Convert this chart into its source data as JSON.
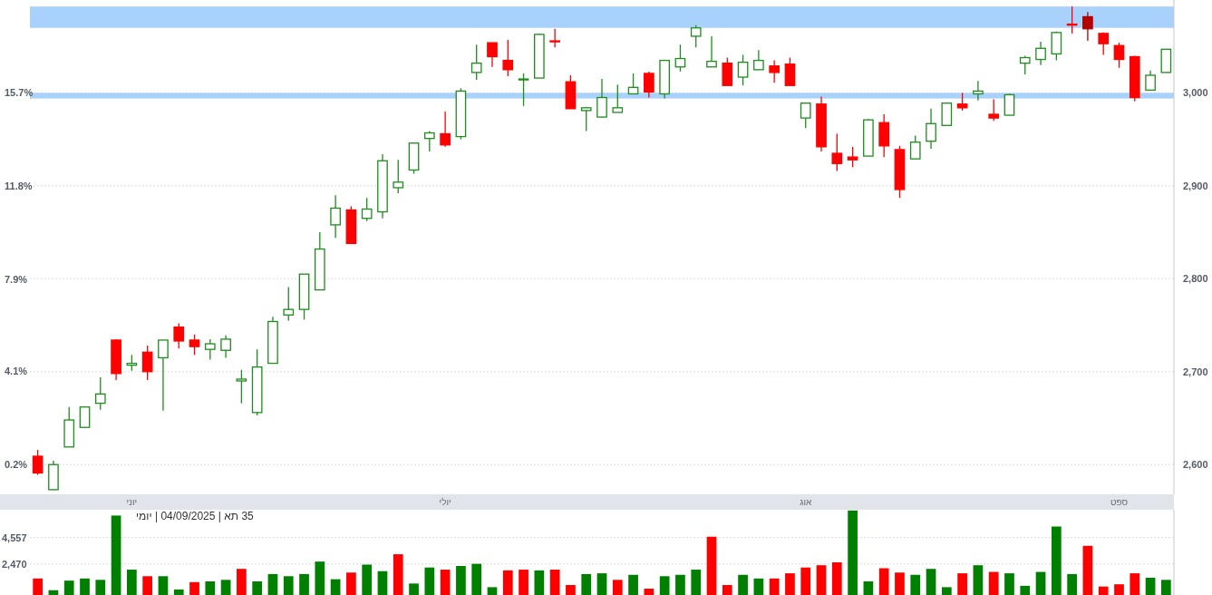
{
  "chart_data": [
    {
      "type": "candlestick",
      "title": "יומי | 04/09/2025 | תא 35",
      "categories": [
        null,
        null,
        null,
        null,
        null,
        null,
        "יוני",
        null,
        null,
        null,
        null,
        null,
        null,
        null,
        null,
        null,
        null,
        null,
        null,
        null,
        null,
        null,
        null,
        null,
        null,
        null,
        "יולי",
        null,
        null,
        null,
        null,
        null,
        null,
        null,
        null,
        null,
        null,
        null,
        null,
        null,
        null,
        null,
        null,
        null,
        null,
        null,
        null,
        null,
        null,
        "אוג",
        null,
        null,
        null,
        null,
        null,
        null,
        null,
        null,
        null,
        null,
        null,
        null,
        null,
        null,
        null,
        null,
        null,
        null,
        null,
        "ספט",
        null,
        null,
        null
      ],
      "ohlc": [
        [
          2609,
          2616,
          2589,
          2591
        ],
        [
          2573,
          2604,
          2573,
          2600
        ],
        [
          2619,
          2662,
          2619,
          2648
        ],
        [
          2640,
          2662,
          2640,
          2662
        ],
        [
          2666,
          2694,
          2659,
          2676
        ],
        [
          2734,
          2735,
          2691,
          2698
        ],
        [
          2707,
          2718,
          2701,
          2709
        ],
        [
          2721,
          2728,
          2691,
          2700
        ],
        [
          2715,
          2734,
          2658,
          2734
        ],
        [
          2748,
          2752,
          2725,
          2733
        ],
        [
          2734,
          2740,
          2718,
          2727
        ],
        [
          2724,
          2735,
          2713,
          2730
        ],
        [
          2723,
          2739,
          2715,
          2735
        ],
        [
          2690,
          2702,
          2666,
          2692
        ],
        [
          2656,
          2724,
          2653,
          2705
        ],
        [
          2709,
          2759,
          2709,
          2754
        ],
        [
          2761,
          2791,
          2755,
          2767
        ],
        [
          2767,
          2805,
          2756,
          2805
        ],
        [
          2788,
          2850,
          2788,
          2832
        ],
        [
          2858,
          2890,
          2844,
          2876
        ],
        [
          2874,
          2878,
          2838,
          2838
        ],
        [
          2865,
          2887,
          2862,
          2875
        ],
        [
          2872,
          2934,
          2865,
          2927
        ],
        [
          2898,
          2928,
          2892,
          2904
        ],
        [
          2917,
          2946,
          2913,
          2946
        ],
        [
          2951,
          2959,
          2937,
          2957
        ],
        [
          2956,
          2980,
          2942,
          2944
        ],
        [
          2953,
          3005,
          2950,
          3002
        ],
        [
          3022,
          3052,
          3014,
          3032
        ],
        [
          3054,
          3054,
          3028,
          3039
        ],
        [
          3035,
          3057,
          3018,
          3025
        ],
        [
          3014,
          3021,
          2986,
          3015
        ],
        [
          3016,
          3064,
          3016,
          3063
        ],
        [
          3056,
          3069,
          3049,
          3055
        ],
        [
          3012,
          3019,
          2983,
          2983
        ],
        [
          2981,
          2985,
          2959,
          2984
        ],
        [
          2974,
          3015,
          2974,
          2995
        ],
        [
          2979,
          3009,
          2979,
          2984
        ],
        [
          2999,
          3021,
          2999,
          3006
        ],
        [
          3021,
          3023,
          2995,
          3001
        ],
        [
          2999,
          3035,
          2994,
          3035
        ],
        [
          3028,
          3052,
          3023,
          3037
        ],
        [
          3061,
          3073,
          3049,
          3070
        ],
        [
          3028,
          3061,
          3028,
          3034
        ],
        [
          3032,
          3038,
          3008,
          3008
        ],
        [
          3017,
          3041,
          3008,
          3033
        ],
        [
          3025,
          3046,
          3025,
          3035
        ],
        [
          3029,
          3035,
          3011,
          3022
        ],
        [
          3031,
          3038,
          3008,
          3008
        ],
        [
          2973,
          2989,
          2962,
          2989
        ],
        [
          2988,
          2996,
          2937,
          2942
        ],
        [
          2935,
          2956,
          2916,
          2924
        ],
        [
          2931,
          2942,
          2920,
          2928
        ],
        [
          2932,
          2972,
          2932,
          2971
        ],
        [
          2968,
          2977,
          2931,
          2943
        ],
        [
          2939,
          2943,
          2887,
          2896
        ],
        [
          2929,
          2954,
          2929,
          2947
        ],
        [
          2948,
          2983,
          2940,
          2967
        ],
        [
          2965,
          2989,
          2965,
          2989
        ],
        [
          2988,
          3000,
          2981,
          2984
        ],
        [
          2999,
          3013,
          2992,
          3002
        ],
        [
          2977,
          2993,
          2970,
          2973
        ],
        [
          2976,
          2999,
          2976,
          2998
        ],
        [
          3032,
          3040,
          3020,
          3038
        ],
        [
          3036,
          3055,
          3030,
          3048
        ],
        [
          3042,
          3066,
          3035,
          3065
        ],
        [
          3074,
          3093,
          3064,
          3073
        ],
        [
          3082,
          3087,
          3056,
          3069
        ],
        [
          3064,
          3065,
          3041,
          3053
        ],
        [
          3051,
          3054,
          3027,
          3036
        ],
        [
          3039,
          3040,
          2991,
          2995
        ],
        [
          3003,
          3024,
          3003,
          3019
        ],
        [
          3022,
          3047,
          3022,
          3047
        ]
      ],
      "colors": [
        "#ff0000",
        "#1e8c1e",
        "#1e8c1e",
        "#1e8c1e",
        "#1e8c1e",
        "#ff0000",
        "#1e8c1e",
        "#ff0000",
        "#1e8c1e",
        "#ff0000",
        "#ff0000",
        "#1e8c1e",
        "#1e8c1e",
        "#1e8c1e",
        "#1e8c1e",
        "#1e8c1e",
        "#1e8c1e",
        "#1e8c1e",
        "#1e8c1e",
        "#1e8c1e",
        "#ff0000",
        "#1e8c1e",
        "#1e8c1e",
        "#1e8c1e",
        "#1e8c1e",
        "#1e8c1e",
        "#ff0000",
        "#1e8c1e",
        "#1e8c1e",
        "#ff0000",
        "#ff0000",
        "#1e8c1e",
        "#1e8c1e",
        "#ff0000",
        "#ff0000",
        "#1e8c1e",
        "#1e8c1e",
        "#1e8c1e",
        "#1e8c1e",
        "#ff0000",
        "#1e8c1e",
        "#1e8c1e",
        "#1e8c1e",
        "#1e8c1e",
        "#ff0000",
        "#1e8c1e",
        "#1e8c1e",
        "#ff0000",
        "#ff0000",
        "#1e8c1e",
        "#ff0000",
        "#ff0000",
        "#ff0000",
        "#1e8c1e",
        "#ff0000",
        "#ff0000",
        "#1e8c1e",
        "#1e8c1e",
        "#1e8c1e",
        "#ff0000",
        "#1e8c1e",
        "#ff0000",
        "#1e8c1e",
        "#1e8c1e",
        "#1e8c1e",
        "#1e8c1e",
        "#ff0000",
        "#b00000",
        "#ff0000",
        "#ff0000",
        "#ff0000",
        "#1e8c1e",
        "#1e8c1e"
      ],
      "ylim": [
        2568,
        3100
      ],
      "yticks": [
        {
          "value": 2600,
          "label": "2,600"
        },
        {
          "value": 2700,
          "label": "2,700"
        },
        {
          "value": 2800,
          "label": "2,800"
        },
        {
          "value": 2900,
          "label": "2,900"
        },
        {
          "value": 3000,
          "label": "3,000"
        }
      ],
      "y2lim": [
        -1.05,
        19.56
      ],
      "y2ticks": [
        {
          "value": 0.2,
          "label": "0.2%"
        },
        {
          "value": 4.1,
          "label": "4.1%"
        },
        {
          "value": 7.9,
          "label": "7.9%"
        },
        {
          "value": 11.8,
          "label": "11.8%"
        },
        {
          "value": 15.7,
          "label": "15.7%"
        }
      ],
      "grid": "y",
      "bands": [
        {
          "axis": "y",
          "from": 3070,
          "to": 3093,
          "color": "#a8d1fb"
        },
        {
          "axis": "y",
          "from": 2994,
          "to": 3000,
          "color": "#a8d1fb"
        }
      ]
    },
    {
      "type": "bar",
      "categories": [
        null,
        null,
        null,
        null,
        null,
        null,
        null,
        null,
        null,
        null,
        null,
        null,
        null,
        null,
        null,
        null,
        null,
        null,
        null,
        null,
        null,
        null,
        null,
        null,
        null,
        null,
        null,
        null,
        null,
        null,
        null,
        null,
        null,
        null,
        null,
        null,
        null,
        null,
        null,
        null,
        null,
        null,
        null,
        null,
        null,
        null,
        null,
        null,
        null,
        null,
        null,
        null,
        null,
        null,
        null,
        null,
        null,
        null,
        null,
        null,
        null,
        null,
        null,
        null,
        null,
        null,
        null,
        null,
        null,
        null,
        null,
        null,
        null
      ],
      "values": [
        1310,
        380,
        1140,
        1310,
        1200,
        6300,
        2010,
        1490,
        1490,
        440,
        1020,
        1080,
        1200,
        2070,
        1080,
        1660,
        1490,
        1660,
        2650,
        1250,
        1780,
        2410,
        1890,
        3230,
        910,
        2180,
        2010,
        2300,
        2470,
        620,
        1950,
        2010,
        1950,
        2010,
        790,
        1660,
        1720,
        1200,
        1600,
        500,
        1490,
        1600,
        2010,
        4620,
        790,
        1600,
        1310,
        1310,
        1720,
        2180,
        2360,
        2590,
        6700,
        1080,
        2120,
        1780,
        1600,
        2070,
        620,
        1720,
        2360,
        1830,
        1720,
        730,
        1830,
        5430,
        1660,
        3900,
        670,
        850,
        1720,
        1370,
        1200
      ],
      "colors": [
        "#ff0000",
        "#008000",
        "#008000",
        "#008000",
        "#008000",
        "#008000",
        "#008000",
        "#ff0000",
        "#008000",
        "#008000",
        "#ff0000",
        "#008000",
        "#008000",
        "#ff0000",
        "#008000",
        "#008000",
        "#008000",
        "#008000",
        "#008000",
        "#008000",
        "#ff0000",
        "#008000",
        "#008000",
        "#ff0000",
        "#008000",
        "#008000",
        "#ff0000",
        "#008000",
        "#008000",
        "#008000",
        "#ff0000",
        "#ff0000",
        "#008000",
        "#ff0000",
        "#ff0000",
        "#008000",
        "#008000",
        "#ff0000",
        "#008000",
        "#ff0000",
        "#008000",
        "#008000",
        "#008000",
        "#ff0000",
        "#ff0000",
        "#008000",
        "#008000",
        "#ff0000",
        "#ff0000",
        "#ff0000",
        "#ff0000",
        "#ff0000",
        "#008000",
        "#008000",
        "#ff0000",
        "#ff0000",
        "#008000",
        "#008000",
        "#008000",
        "#ff0000",
        "#008000",
        "#ff0000",
        "#008000",
        "#008000",
        "#008000",
        "#008000",
        "#008000",
        "#ff0000",
        "#ff0000",
        "#ff0000",
        "#ff0000",
        "#008000",
        "#008000"
      ],
      "ylim": [
        0,
        6760
      ],
      "yticks": [
        {
          "value": 2470,
          "label": "2,470"
        },
        {
          "value": 4557,
          "label": "4,557"
        }
      ],
      "grid": "y",
      "tick_labels": "y"
    }
  ]
}
